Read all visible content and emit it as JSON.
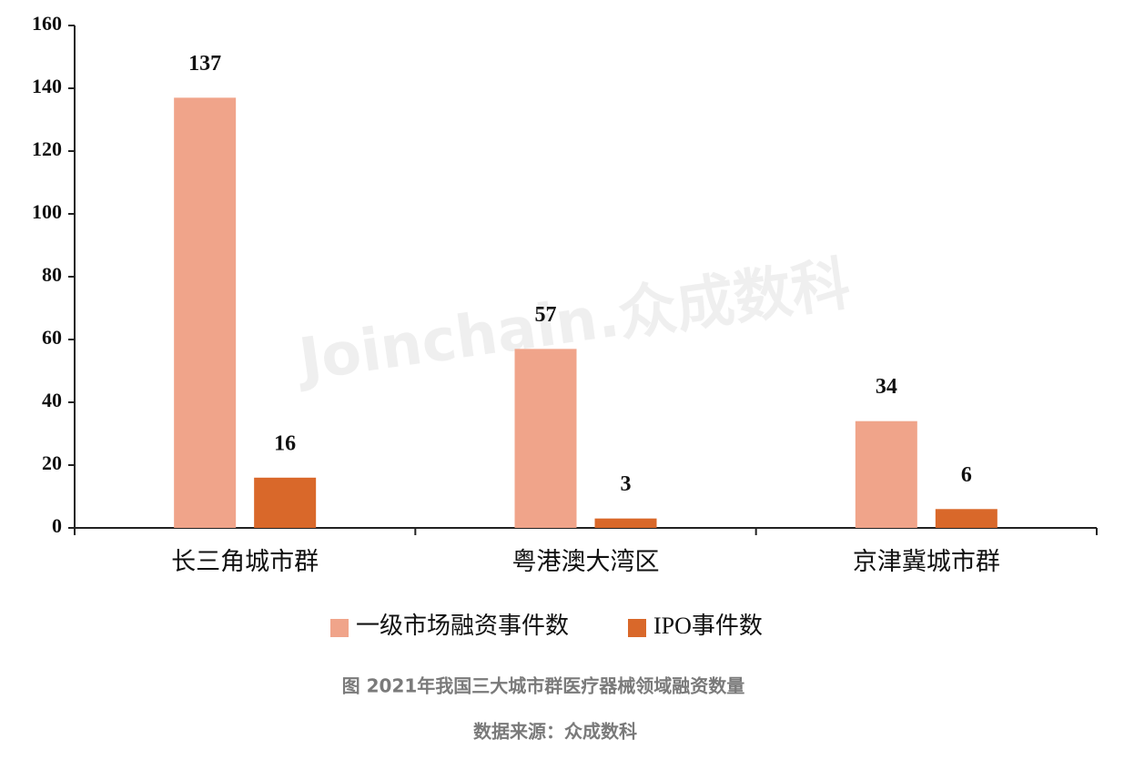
{
  "chart_data": {
    "type": "bar",
    "categories": [
      "长三角城市群",
      "粤港澳大湾区",
      "京津冀城市群"
    ],
    "series": [
      {
        "name": "一级市场融资事件数",
        "color": "#f0a48a",
        "values": [
          137,
          57,
          34
        ]
      },
      {
        "name": "IPO事件数",
        "color": "#d9682a",
        "values": [
          16,
          3,
          6
        ]
      }
    ],
    "ylim": [
      0,
      160
    ],
    "yticks": [
      0,
      20,
      40,
      60,
      80,
      100,
      120,
      140,
      160
    ],
    "grid": false,
    "legend": "bottom",
    "watermark": "Joinchain.众成数科",
    "caption": "图 2021年我国三大城市群医疗器械领域融资数量",
    "source": "数据来源：众成数科"
  }
}
